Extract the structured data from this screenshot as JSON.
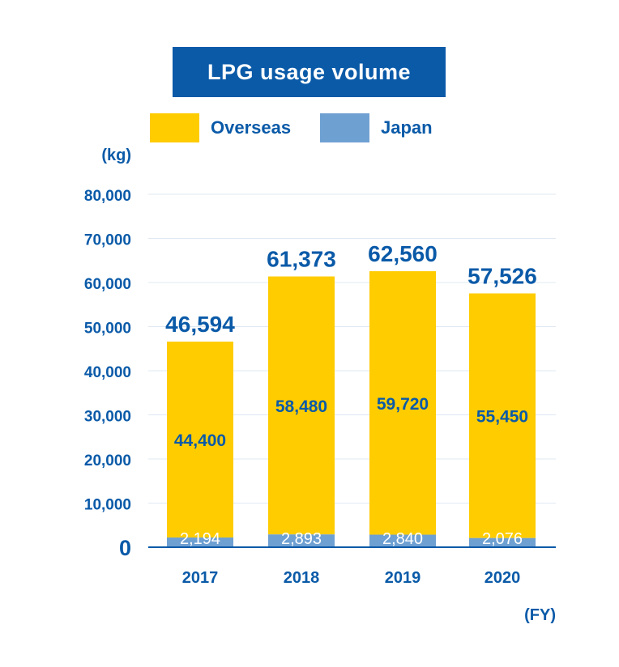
{
  "chart_data": {
    "type": "bar",
    "stacked": true,
    "title": "LPG usage volume",
    "ylabel": "(kg)",
    "xlabel": "(FY)",
    "categories": [
      "2017",
      "2018",
      "2019",
      "2020"
    ],
    "series": [
      {
        "name": "Japan",
        "color": "#6fa0d2",
        "values": [
          2194,
          2893,
          2840,
          2076
        ]
      },
      {
        "name": "Overseas",
        "color": "#ffcc00",
        "values": [
          44400,
          58480,
          59720,
          55450
        ]
      }
    ],
    "totals": [
      46594,
      61373,
      62560,
      57526
    ],
    "ylim": [
      0,
      80000
    ],
    "yticks": [
      0,
      10000,
      20000,
      30000,
      40000,
      50000,
      60000,
      70000,
      80000
    ],
    "ytick_labels": [
      "0",
      "10,000",
      "20,000",
      "30,000",
      "40,000",
      "50,000",
      "60,000",
      "70,000",
      "80,000"
    ],
    "grid": true,
    "legend_position": "top"
  }
}
